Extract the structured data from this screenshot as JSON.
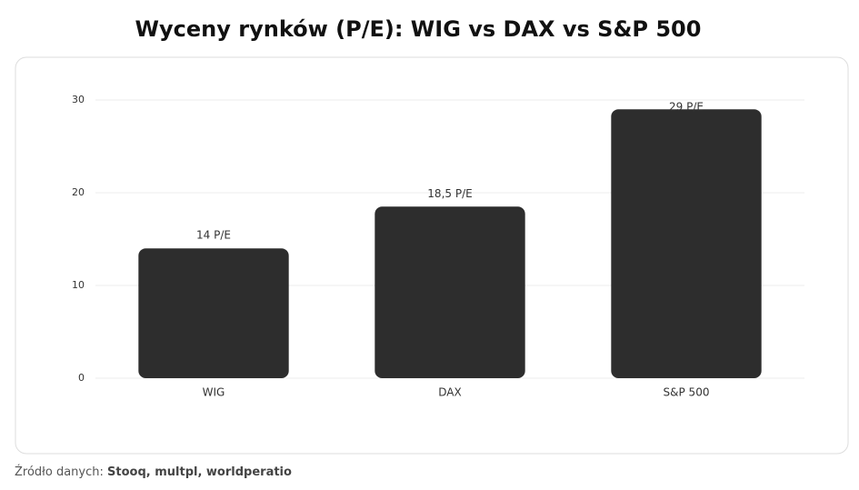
{
  "chart_data": {
    "type": "bar",
    "title": "Wyceny rynków (P/E): WIG vs DAX vs S&P 500",
    "categories": [
      "WIG",
      "DAX",
      "S&P 500"
    ],
    "values": [
      14,
      18.5,
      29
    ],
    "value_labels": [
      "14 P/E",
      "18,5 P/E",
      "29 P/E"
    ],
    "color": "#2d2d2d",
    "ylim": [
      0,
      30
    ],
    "yticks": [
      0,
      10,
      20,
      30
    ],
    "grid": true
  },
  "footer": {
    "label": "Źródło danych:",
    "sources": "Stooq, multpl, worldperatio"
  }
}
